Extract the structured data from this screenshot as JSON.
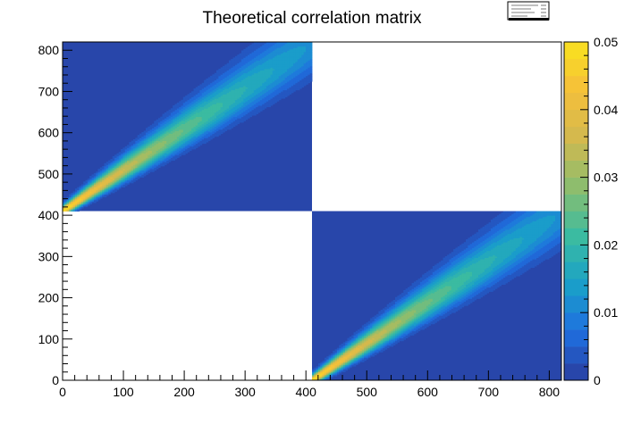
{
  "chart_data": {
    "type": "heatmap",
    "title": "Theoretical correlation matrix",
    "xlabel": "",
    "ylabel": "",
    "xlim": [
      0,
      820
    ],
    "ylim": [
      0,
      820
    ],
    "x_ticks": [
      0,
      100,
      200,
      300,
      400,
      500,
      600,
      700,
      800
    ],
    "y_ticks": [
      0,
      100,
      200,
      300,
      400,
      500,
      600,
      700,
      800
    ],
    "z_range": [
      0,
      0.05
    ],
    "colorbar_ticks": [
      0,
      0.01,
      0.02,
      0.03,
      0.04,
      0.05
    ],
    "colorbar_tick_labels": [
      "0",
      "0.01",
      "0.02",
      "0.03",
      "0.04",
      "0.05"
    ],
    "colorscale": [
      "#2a3d9f",
      "#1f6fe0",
      "#1aa1c8",
      "#3cbca0",
      "#8cbd6e",
      "#d2b94e",
      "#f5bf3a",
      "#f9e21e"
    ],
    "colorbar_levels": 20,
    "blocks": [
      {
        "name": "upper-left block",
        "x_range": [
          0,
          410
        ],
        "y_range": [
          410,
          820
        ],
        "fill_value": 0,
        "ridge": {
          "start": [
            0,
            410
          ],
          "end": [
            410,
            820
          ],
          "peak_start": 0.05,
          "peak_end": 0.012,
          "width_start": 6,
          "width_end": 40
        }
      },
      {
        "name": "lower-right block",
        "x_range": [
          410,
          820
        ],
        "y_range": [
          0,
          410
        ],
        "fill_value": 0,
        "ridge": {
          "start": [
            410,
            0
          ],
          "end": [
            820,
            410
          ],
          "peak_start": 0.05,
          "peak_end": 0.012,
          "width_start": 6,
          "width_end": 40
        }
      }
    ],
    "empty_regions": [
      {
        "x_range": [
          0,
          410
        ],
        "y_range": [
          0,
          410
        ]
      },
      {
        "x_range": [
          410,
          820
        ],
        "y_range": [
          410,
          820
        ]
      }
    ],
    "legend_placement": "top-right",
    "grid": false
  }
}
